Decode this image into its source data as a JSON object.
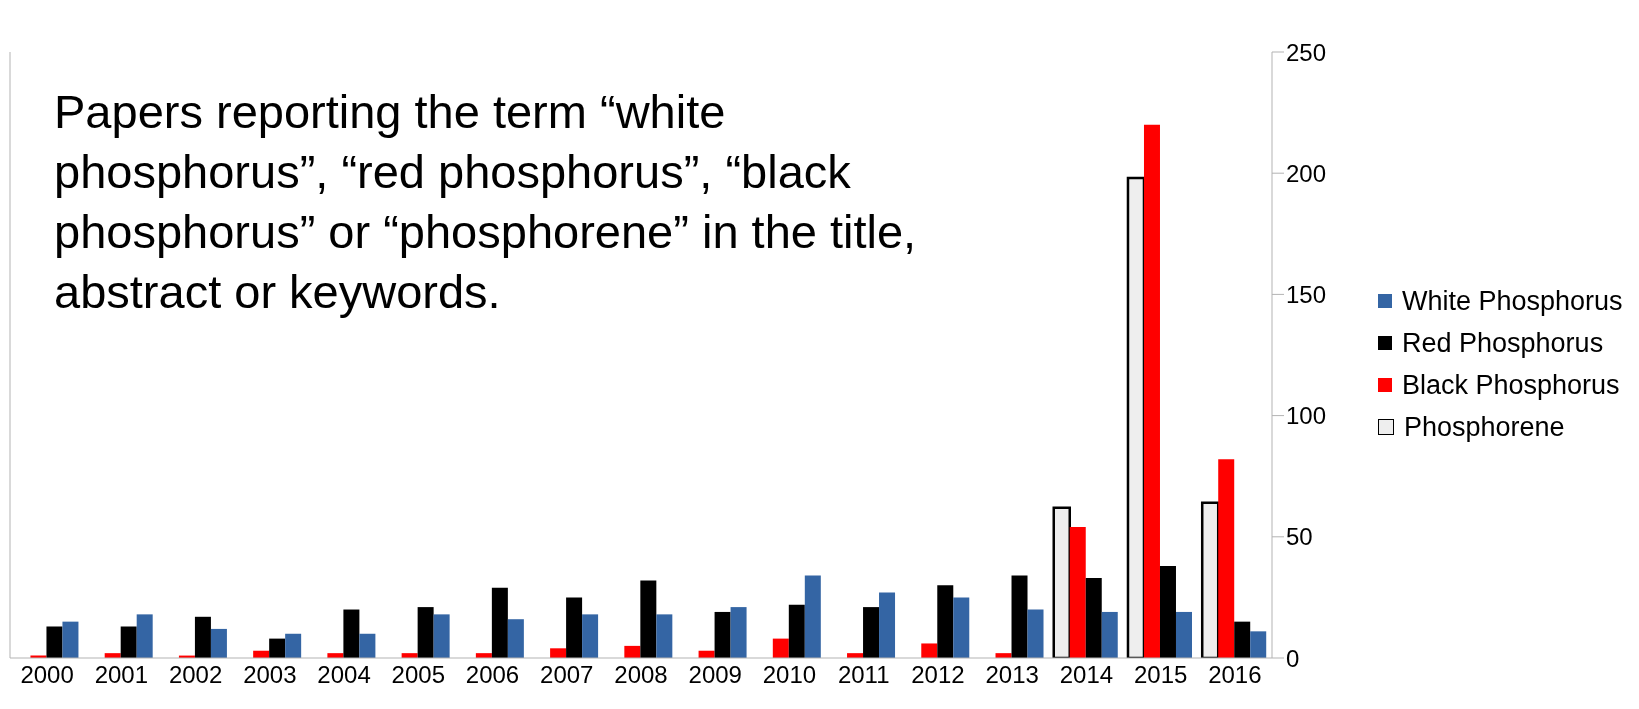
{
  "chart_data": {
    "type": "bar",
    "title": "Papers reporting the term “white phosphorus”, “red phosphorus”, “black phosphorus” or “phosphorene” in the title, abstract or keywords.",
    "categories": [
      "2000",
      "2001",
      "2002",
      "2003",
      "2004",
      "2005",
      "2006",
      "2007",
      "2008",
      "2009",
      "2010",
      "2011",
      "2012",
      "2013",
      "2014",
      "2015",
      "2016"
    ],
    "series": [
      {
        "name": "Phosphorene",
        "color": "#eeeeee",
        "values": [
          null,
          null,
          null,
          null,
          null,
          null,
          null,
          null,
          null,
          null,
          null,
          null,
          null,
          null,
          62,
          198,
          64
        ]
      },
      {
        "name": "Black Phosphorus",
        "color": "#ff0000",
        "values": [
          1,
          2,
          1,
          3,
          2,
          2,
          2,
          4,
          5,
          3,
          8,
          2,
          6,
          2,
          54,
          220,
          82
        ]
      },
      {
        "name": "Red Phosphorus",
        "color": "#000000",
        "values": [
          13,
          13,
          17,
          8,
          20,
          21,
          29,
          25,
          32,
          19,
          22,
          21,
          30,
          34,
          33,
          38,
          15
        ]
      },
      {
        "name": "White Phosphorus",
        "color": "#3465a4",
        "values": [
          15,
          18,
          12,
          10,
          10,
          18,
          16,
          18,
          18,
          21,
          34,
          27,
          25,
          20,
          19,
          19,
          11
        ]
      }
    ],
    "ylim": [
      0,
      250
    ],
    "yticks": [
      0,
      50,
      100,
      150,
      200,
      250
    ],
    "legend": "right"
  }
}
